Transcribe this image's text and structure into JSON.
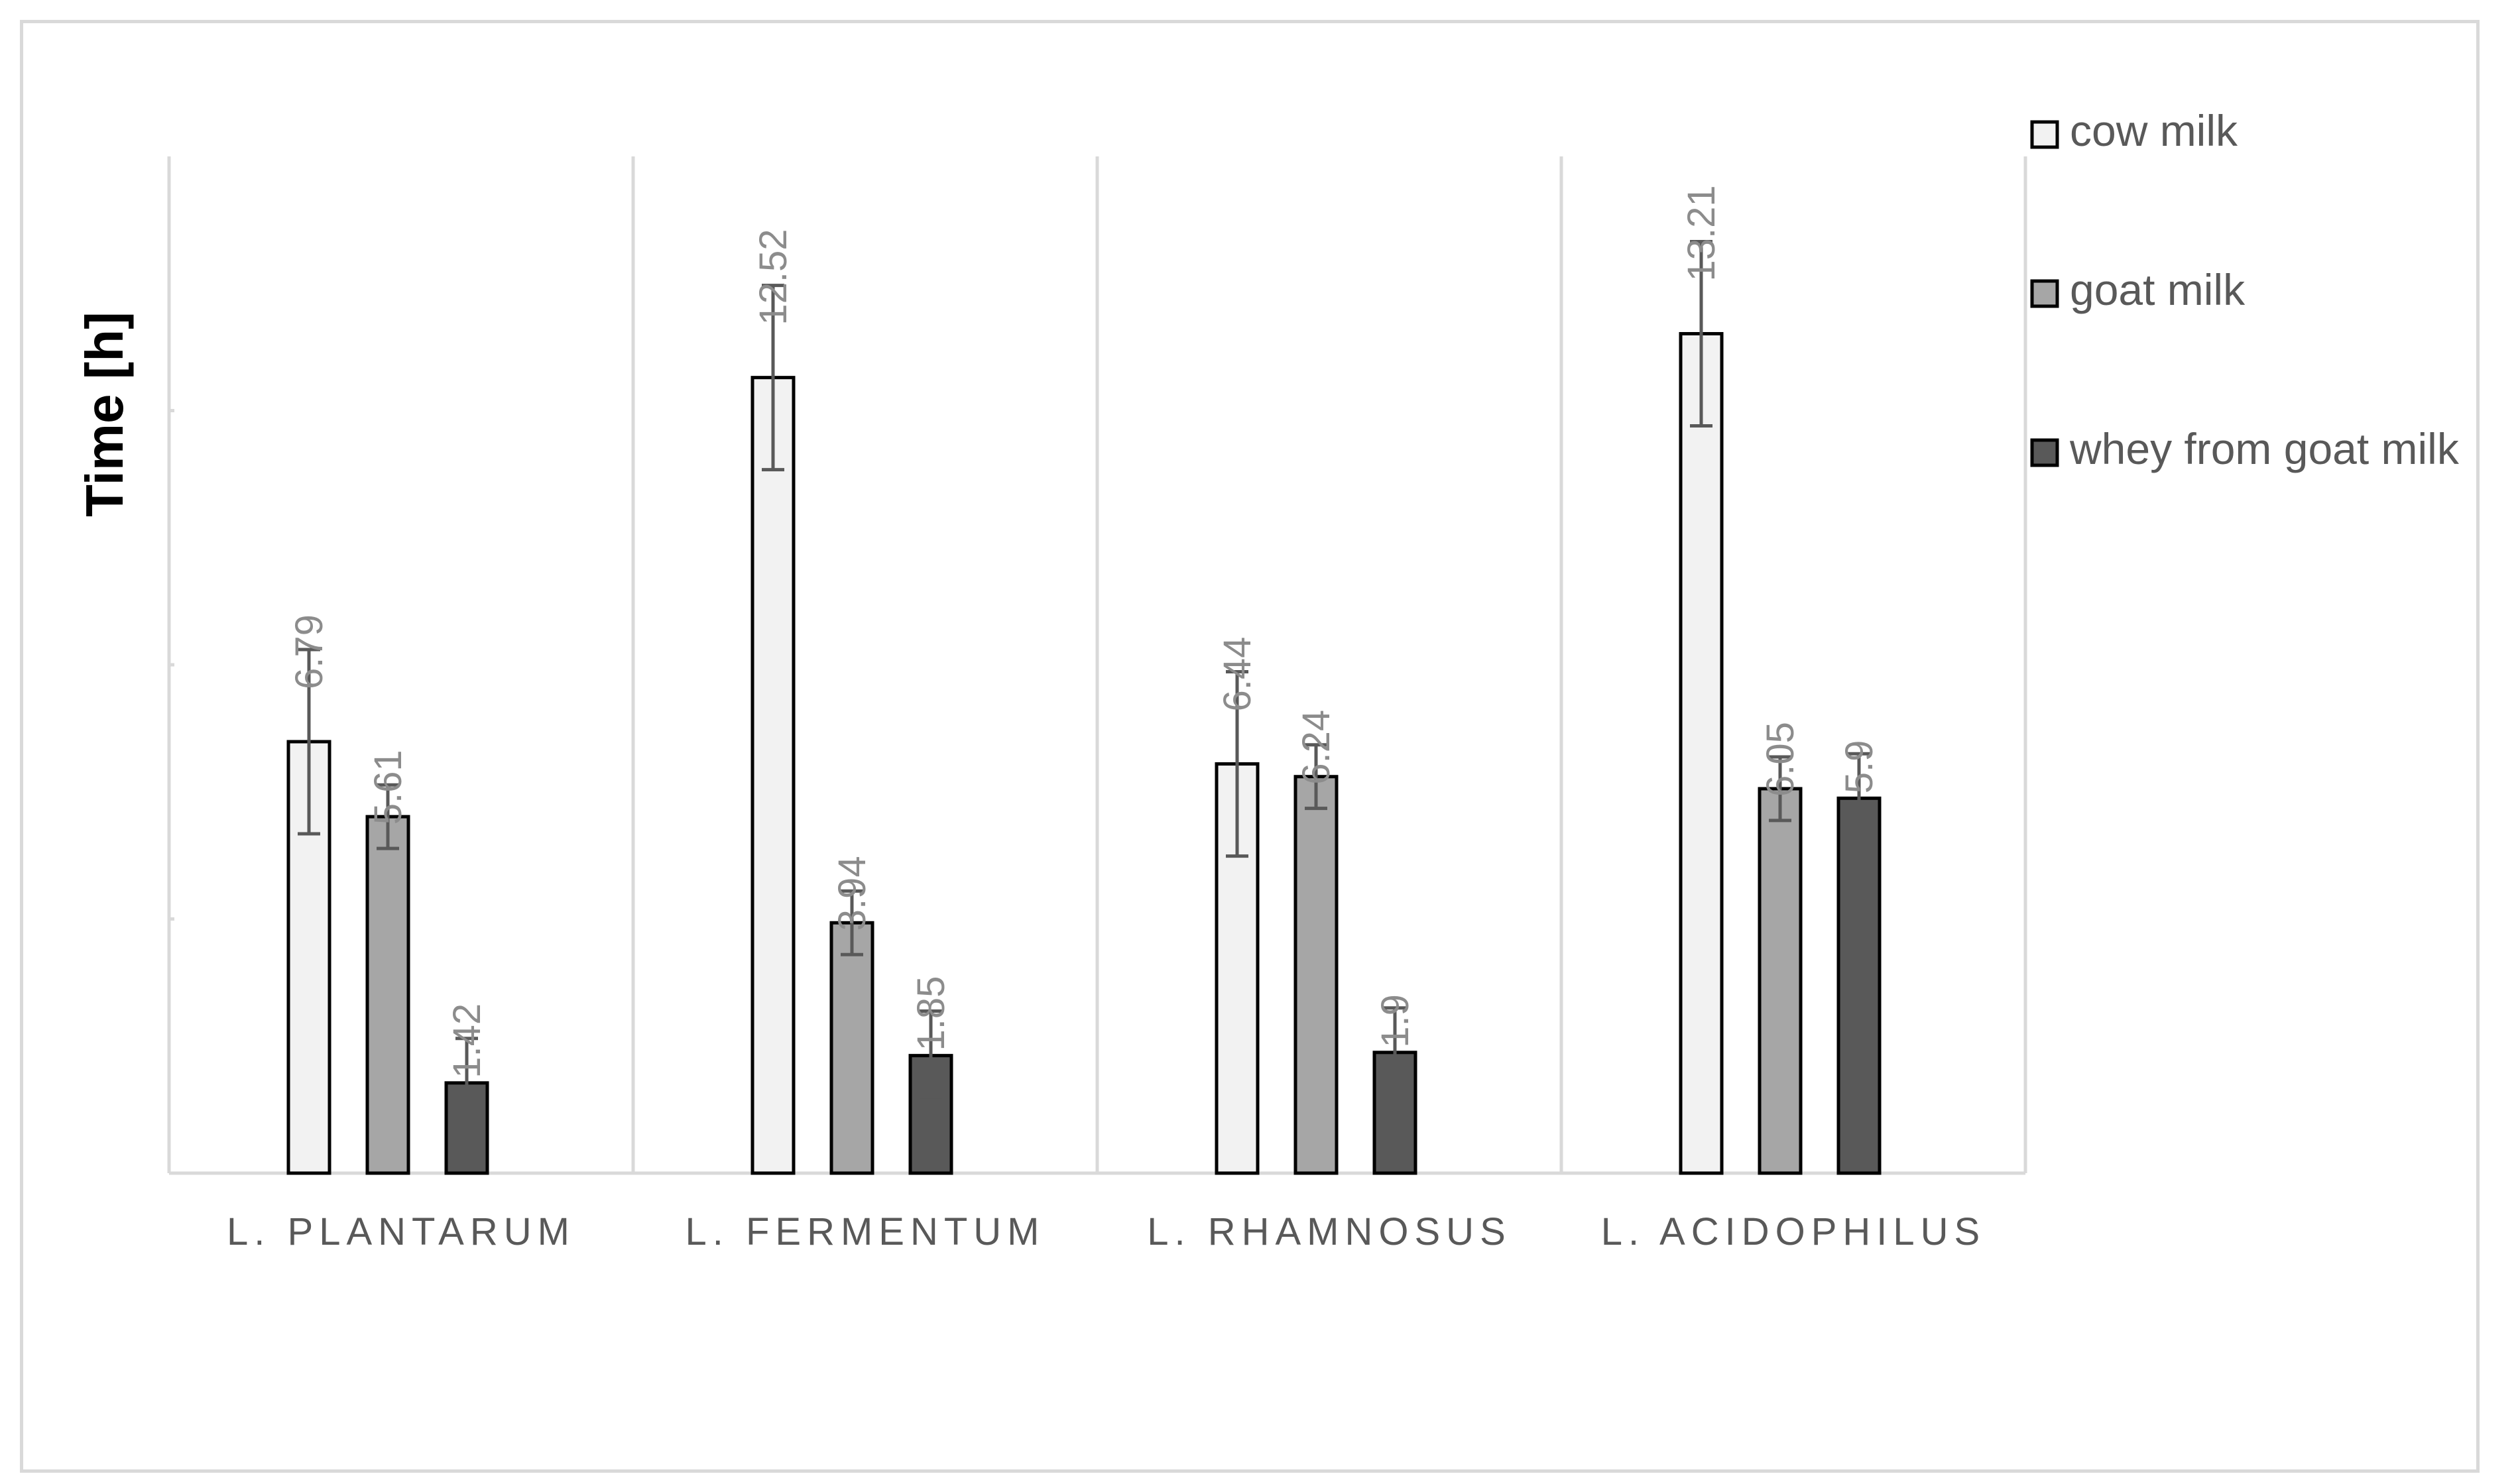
{
  "chart_data": {
    "type": "bar",
    "categories": [
      "L. PLANTARUM",
      "L. FERMENTUM",
      "L. RHAMNOSUS",
      "L. ACIDOPHILUS"
    ],
    "series": [
      {
        "name": "cow milk",
        "values": [
          6.79,
          12.52,
          6.44,
          13.21
        ],
        "errors": [
          1.45,
          1.45,
          1.45,
          1.45
        ],
        "color": "#f2f2f2"
      },
      {
        "name": "goat milk",
        "values": [
          5.61,
          3.94,
          6.24,
          6.05
        ],
        "errors": [
          0.5,
          0.5,
          0.5,
          0.5
        ],
        "color": "#a6a6a6"
      },
      {
        "name": "whey from goat milk",
        "values": [
          1.42,
          1.85,
          1.9,
          5.9
        ],
        "errors": [
          0.7,
          0.7,
          0.7,
          0.7
        ],
        "color": "#595959"
      }
    ],
    "data_labels": [
      [
        "6.79",
        "12.52",
        "6.44",
        "13.21"
      ],
      [
        "5.61",
        "3.94",
        "6.24",
        "6.05"
      ],
      [
        "1.42",
        "1.85",
        "1.9",
        "5.9"
      ]
    ],
    "xlabel": "",
    "ylabel": "Time [h]",
    "ylim": [
      0,
      16
    ],
    "grid": true,
    "legend": "right",
    "colors": {
      "axis": "#d9d9d9",
      "bar_border": "#000000",
      "error_bar": "#595959"
    }
  }
}
